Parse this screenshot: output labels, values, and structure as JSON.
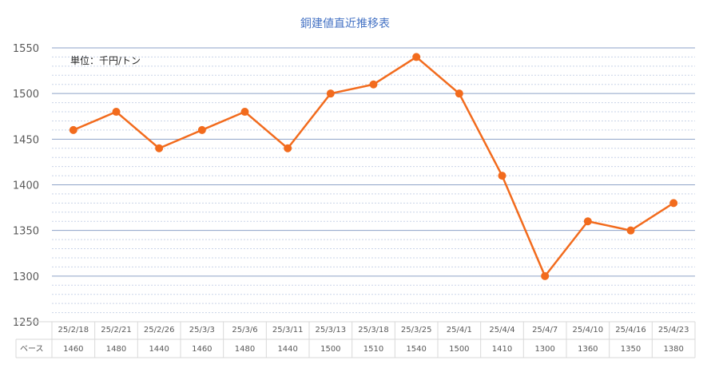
{
  "chart_data": {
    "type": "line",
    "title": "銅建値直近推移表",
    "unit_label": "単位：千円/トン",
    "categories": [
      "25/2/18",
      "25/2/21",
      "25/2/26",
      "25/3/3",
      "25/3/6",
      "25/3/11",
      "25/3/13",
      "25/3/18",
      "25/3/25",
      "25/4/1",
      "25/4/4",
      "25/4/7",
      "25/4/10",
      "25/4/16",
      "25/4/23"
    ],
    "series": [
      {
        "name": "ベース",
        "values": [
          1460,
          1480,
          1440,
          1460,
          1480,
          1440,
          1500,
          1510,
          1540,
          1500,
          1410,
          1300,
          1360,
          1350,
          1380
        ],
        "color": "#f26b1d"
      }
    ],
    "ylim": [
      1250,
      1550
    ],
    "yticks": [
      1250,
      1300,
      1350,
      1400,
      1450,
      1500,
      1550
    ],
    "grid": true,
    "data_table": true,
    "major_grid_color": "#8ea2c8",
    "minor_grid_color": "#c9d4e8"
  }
}
